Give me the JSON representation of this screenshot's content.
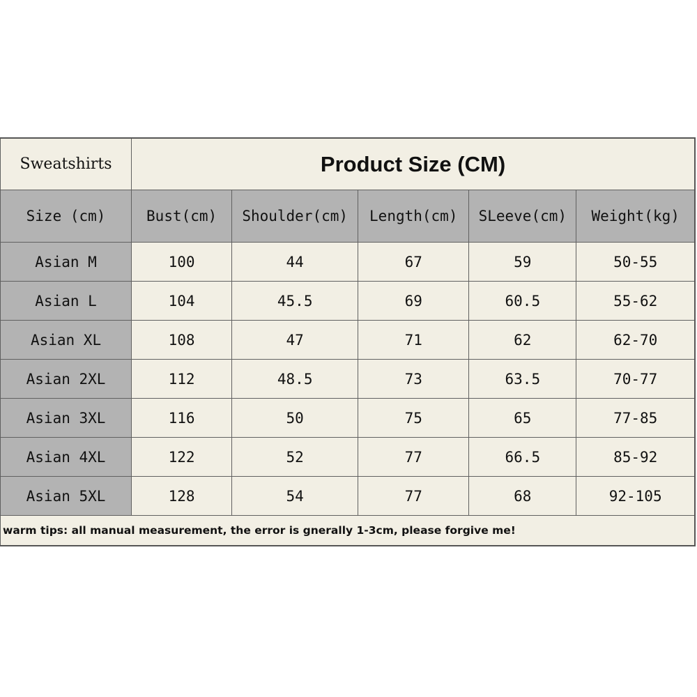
{
  "chart_data": {
    "type": "table",
    "label": "Sweatshirts",
    "title": "Product Size (CM)",
    "columns": [
      "Size (cm)",
      "Bust(cm)",
      "Shoulder(cm)",
      "Length(cm)",
      "SLeeve(cm)",
      "Weight(kg)"
    ],
    "rows": [
      [
        "Asian M",
        "100",
        "44",
        "67",
        "59",
        "50-55"
      ],
      [
        "Asian L",
        "104",
        "45.5",
        "69",
        "60.5",
        "55-62"
      ],
      [
        "Asian XL",
        "108",
        "47",
        "71",
        "62",
        "62-70"
      ],
      [
        "Asian 2XL",
        "112",
        "48.5",
        "73",
        "63.5",
        "70-77"
      ],
      [
        "Asian 3XL",
        "116",
        "50",
        "75",
        "65",
        "77-85"
      ],
      [
        "Asian 4XL",
        "122",
        "52",
        "77",
        "66.5",
        "85-92"
      ],
      [
        "Asian 5XL",
        "128",
        "54",
        "77",
        "68",
        "92-105"
      ]
    ],
    "note": "warm tips: all manual measurement, the error is gnerally 1-3cm, please forgive me!"
  },
  "colors": {
    "cell_background": "#f2efe4",
    "header_background": "#b3b3b3",
    "border": "#606060",
    "text": "#111111"
  }
}
